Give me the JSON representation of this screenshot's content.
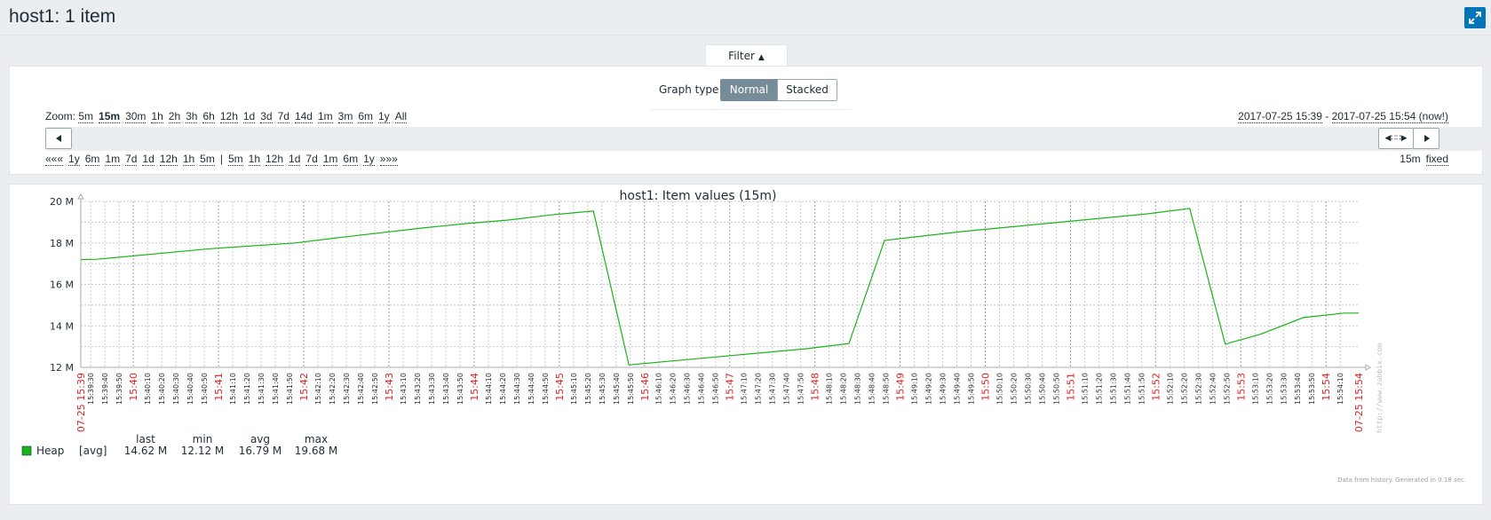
{
  "header": {
    "title": "host1: 1 item"
  },
  "filter": {
    "tab_label": "Filter",
    "graph_type_label": "Graph type",
    "graph_types": [
      "Normal",
      "Stacked"
    ],
    "selected_graph_type": "Normal",
    "zoom_label": "Zoom:",
    "zoom_options": [
      "5m",
      "15m",
      "30m",
      "1h",
      "2h",
      "3h",
      "6h",
      "12h",
      "1d",
      "3d",
      "7d",
      "14d",
      "1m",
      "3m",
      "6m",
      "1y",
      "All"
    ],
    "zoom_selected": "15m",
    "range_from": "2017-07-25 15:39",
    "range_sep": " - ",
    "range_to": "2017-07-25 15:54 (now!)",
    "nav_back": [
      "«««",
      "1y",
      "6m",
      "1m",
      "7d",
      "1d",
      "12h",
      "1h",
      "5m"
    ],
    "nav_sep": "|",
    "nav_forward": [
      "5m",
      "1h",
      "12h",
      "1d",
      "7d",
      "1m",
      "6m",
      "1y",
      "»»»"
    ],
    "period_value": "15m",
    "period_mode": "fixed"
  },
  "chart_data": {
    "type": "line",
    "title": "host1: Item values (15m)",
    "y_ticks": [
      "20 M",
      "18 M",
      "16 M",
      "14 M",
      "12 M"
    ],
    "ylim": [
      12,
      20
    ],
    "y_unit": "M",
    "x_start_label": "07-25 15:39",
    "x_end_label": "07-25 15:54",
    "x_tick_labels": [
      "15:39:30",
      "15:39:40",
      "15:39:50",
      "15:40:00",
      "15:40:10",
      "15:40:20",
      "15:40:30",
      "15:40:40",
      "15:40:50",
      "15:41:00",
      "15:41:10",
      "15:41:20",
      "15:41:30",
      "15:41:40",
      "15:41:50",
      "15:42:00",
      "15:42:10",
      "15:42:20",
      "15:42:30",
      "15:42:40",
      "15:42:50",
      "15:43:00",
      "15:43:10",
      "15:43:20",
      "15:43:30",
      "15:43:40",
      "15:43:50",
      "15:44:00",
      "15:44:10",
      "15:44:20",
      "15:44:30",
      "15:44:40",
      "15:44:50",
      "15:45:00",
      "15:45:10",
      "15:45:20",
      "15:45:30",
      "15:45:40",
      "15:45:50",
      "15:46:00",
      "15:46:10",
      "15:46:20",
      "15:46:30",
      "15:46:40",
      "15:46:50",
      "15:47:00",
      "15:47:10",
      "15:47:20",
      "15:47:30",
      "15:47:40",
      "15:47:50",
      "15:48:00",
      "15:48:10",
      "15:48:20",
      "15:48:30",
      "15:48:40",
      "15:48:50",
      "15:49:00",
      "15:49:10",
      "15:49:20",
      "15:49:30",
      "15:49:40",
      "15:49:50",
      "15:50:00",
      "15:50:10",
      "15:50:20",
      "15:50:30",
      "15:50:40",
      "15:50:50",
      "15:51:00",
      "15:51:10",
      "15:51:20",
      "15:51:30",
      "15:51:40",
      "15:51:50",
      "15:52:00",
      "15:52:10",
      "15:52:20",
      "15:52:30",
      "15:52:40",
      "15:52:50",
      "15:53:00",
      "15:53:10",
      "15:53:20",
      "15:53:30",
      "15:53:40",
      "15:53:50",
      "15:54:00",
      "15:54:10"
    ],
    "x_time_start": "15:39:23",
    "x_time_end": "15:54:23",
    "series": [
      {
        "name": "Heap",
        "color": "#1ab41a",
        "points": [
          [
            "15:39:23",
            17.2
          ],
          [
            "15:39:34",
            17.21
          ],
          [
            "15:40:54",
            17.72
          ],
          [
            "15:41:54",
            18.0
          ],
          [
            "15:42:24",
            18.25
          ],
          [
            "15:43:24",
            18.72
          ],
          [
            "15:43:54",
            18.93
          ],
          [
            "15:44:24",
            19.1
          ],
          [
            "15:44:54",
            19.35
          ],
          [
            "15:45:24",
            19.54
          ],
          [
            "15:45:49",
            12.12
          ],
          [
            "15:47:54",
            12.9
          ],
          [
            "15:48:24",
            13.15
          ],
          [
            "15:48:49",
            18.12
          ],
          [
            "15:49:44",
            18.55
          ],
          [
            "15:51:54",
            19.4
          ],
          [
            "15:52:24",
            19.66
          ],
          [
            "15:52:49",
            13.12
          ],
          [
            "15:53:14",
            13.6
          ],
          [
            "15:53:44",
            14.4
          ],
          [
            "15:54:13",
            14.62
          ],
          [
            "15:54:23",
            14.62
          ]
        ]
      }
    ],
    "legend": {
      "headers": [
        "last",
        "min",
        "avg",
        "max"
      ],
      "rows": [
        {
          "name": "Heap",
          "func": "[avg]",
          "last": "14.62 M",
          "min": "12.12 M",
          "avg": "16.79 M",
          "max": "19.68 M",
          "color": "#1ab41a"
        }
      ]
    },
    "watermark": "http://www.zabbix.com",
    "footer_note": "Data from history. Generated in 0.18 sec.",
    "grid": true
  }
}
